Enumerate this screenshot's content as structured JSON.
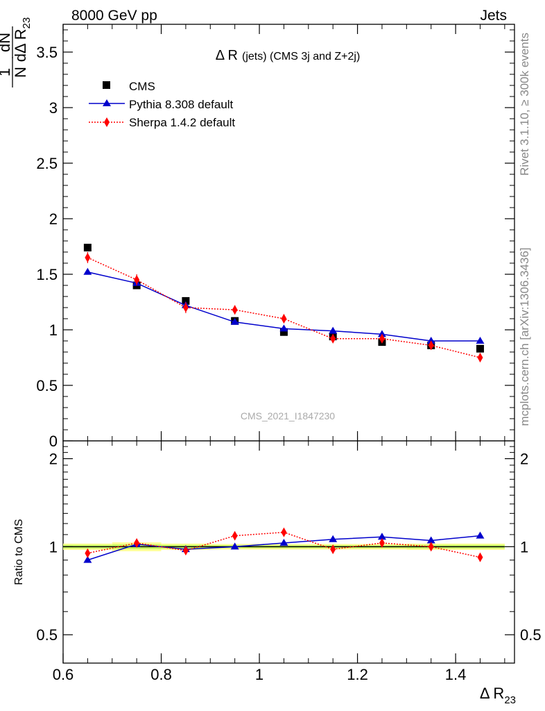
{
  "header": {
    "energy_label": "8000 GeV pp",
    "process_label": "Jets"
  },
  "side_labels": {
    "rivet": "Rivet 3.1.10, ≥ 300k events",
    "mcplots": "mcplots.cern.ch [arXiv:1306.3436]"
  },
  "watermark": "CMS_2021_I1847230",
  "chart_data": [
    {
      "type": "scatter",
      "panel": "main",
      "title": "Δ R (jets) (CMS 3j and Z+2j)",
      "title_main": "Δ R",
      "title_rest": "(jets) (CMS 3j and Z+2j)",
      "ylabel_parts": {
        "frac_num": "1",
        "frac_den": "N",
        "d_num": "dN",
        "d_den": "dΔ R",
        "sub": "23"
      },
      "ylim": [
        0,
        3.75
      ],
      "yticks": [
        0,
        0.5,
        1,
        1.5,
        2,
        2.5,
        3,
        3.5
      ],
      "ytick_labels": [
        "0",
        "0.5",
        "1",
        "1.5",
        "2",
        "2.5",
        "3",
        "3.5"
      ],
      "xlim": [
        0.6,
        1.52
      ],
      "legend_position": "top-left",
      "series": [
        {
          "name": "CMS",
          "color": "#000000",
          "marker": "square",
          "line": "none",
          "x": [
            0.65,
            0.75,
            0.85,
            0.95,
            1.05,
            1.15,
            1.25,
            1.35,
            1.45
          ],
          "y": [
            1.74,
            1.4,
            1.26,
            1.08,
            0.98,
            0.94,
            0.89,
            0.86,
            0.83
          ]
        },
        {
          "name": "Pythia 8.308 default",
          "color": "#0000cc",
          "marker": "triangle",
          "line": "solid",
          "x": [
            0.65,
            0.75,
            0.85,
            0.95,
            1.05,
            1.15,
            1.25,
            1.35,
            1.45
          ],
          "y": [
            1.52,
            1.42,
            1.22,
            1.07,
            1.01,
            0.99,
            0.96,
            0.9,
            0.9
          ]
        },
        {
          "name": "Sherpa 1.4.2 default",
          "color": "#ff0000",
          "marker": "diamond",
          "line": "dotted",
          "x": [
            0.65,
            0.75,
            0.85,
            0.95,
            1.05,
            1.15,
            1.25,
            1.35,
            1.45
          ],
          "y": [
            1.65,
            1.45,
            1.2,
            1.18,
            1.1,
            0.92,
            0.92,
            0.86,
            0.75
          ],
          "err": [
            0.05,
            0.05,
            0.05,
            0.04,
            0.04,
            0.04,
            0.04,
            0.04,
            0.04
          ]
        }
      ]
    },
    {
      "type": "scatter",
      "panel": "ratio",
      "ylabel": "Ratio to CMS",
      "ylim": [
        0.4,
        2.3
      ],
      "yticks": [
        0.5,
        1,
        2
      ],
      "ytick_labels": [
        "0.5",
        "1",
        "2"
      ],
      "xlim": [
        0.6,
        1.52
      ],
      "xticks": [
        0.6,
        0.8,
        1.0,
        1.2,
        1.4
      ],
      "xtick_labels": [
        "0.6",
        "0.8",
        "1",
        "1.2",
        "1.4"
      ],
      "xlabel_main": "Δ R",
      "xlabel_sub": "23",
      "uncertainty_band": {
        "x_edges": [
          0.6,
          0.7,
          0.8,
          0.9,
          1.0,
          1.1,
          1.2,
          1.3,
          1.4,
          1.5
        ],
        "stat_half": [
          0.015,
          0.02,
          0.015,
          0.012,
          0.012,
          0.012,
          0.012,
          0.015,
          0.015
        ],
        "total_half": [
          0.025,
          0.035,
          0.025,
          0.022,
          0.022,
          0.022,
          0.022,
          0.025,
          0.025
        ],
        "inner_color": "#ccff66",
        "outer_color": "#ffff99"
      },
      "series": [
        {
          "name": "Pythia 8.308 default",
          "color": "#0000cc",
          "marker": "triangle",
          "line": "solid",
          "x": [
            0.65,
            0.75,
            0.85,
            0.95,
            1.05,
            1.15,
            1.25,
            1.35,
            1.45
          ],
          "y": [
            0.9,
            1.02,
            0.98,
            1.0,
            1.03,
            1.06,
            1.08,
            1.05,
            1.09
          ]
        },
        {
          "name": "Sherpa 1.4.2 default",
          "color": "#ff0000",
          "marker": "diamond",
          "line": "dotted",
          "x": [
            0.65,
            0.75,
            0.85,
            0.95,
            1.05,
            1.15,
            1.25,
            1.35,
            1.45
          ],
          "y": [
            0.95,
            1.03,
            0.97,
            1.09,
            1.12,
            0.98,
            1.03,
            1.0,
            0.92
          ],
          "err": [
            0.03,
            0.03,
            0.03,
            0.03,
            0.03,
            0.03,
            0.03,
            0.03,
            0.03
          ]
        }
      ]
    }
  ]
}
